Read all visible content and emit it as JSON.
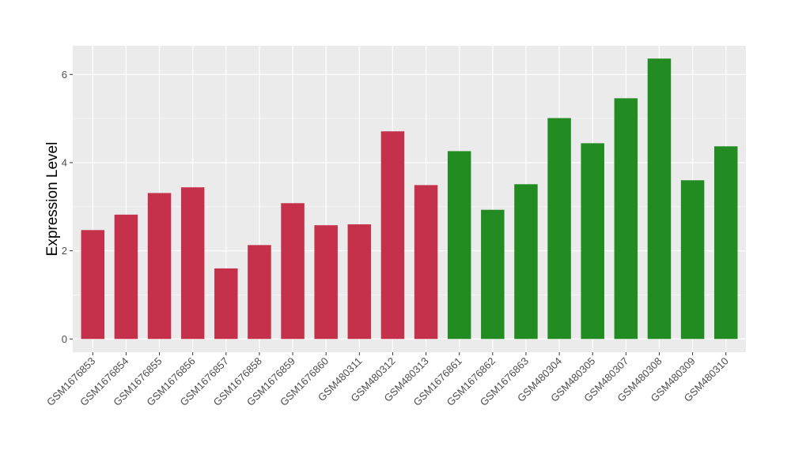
{
  "chart_data": {
    "type": "bar",
    "title": "",
    "xlabel": "",
    "ylabel": "Expression Level",
    "ylim": [
      -0.3,
      6.65
    ],
    "yticks": [
      0,
      2,
      4,
      6
    ],
    "grid": true,
    "background": "#ebebeb",
    "categories": [
      "GSM1676853",
      "GSM1676854",
      "GSM1676855",
      "GSM1676856",
      "GSM1676857",
      "GSM1676858",
      "GSM1676859",
      "GSM1676860",
      "GSM480311",
      "GSM480312",
      "GSM480313",
      "GSM1676861",
      "GSM1676862",
      "GSM1676863",
      "GSM480304",
      "GSM480305",
      "GSM480307",
      "GSM480308",
      "GSM480309",
      "GSM480310"
    ],
    "values": [
      2.47,
      2.82,
      3.31,
      3.44,
      1.6,
      2.13,
      3.08,
      2.58,
      2.6,
      4.71,
      3.49,
      4.26,
      2.93,
      3.51,
      5.01,
      4.44,
      5.46,
      6.36,
      3.6,
      4.37
    ],
    "colors": [
      "#c5314a",
      "#c5314a",
      "#c5314a",
      "#c5314a",
      "#c5314a",
      "#c5314a",
      "#c5314a",
      "#c5314a",
      "#c5314a",
      "#c5314a",
      "#c5314a",
      "#228b22",
      "#228b22",
      "#228b22",
      "#228b22",
      "#228b22",
      "#228b22",
      "#228b22",
      "#228b22",
      "#228b22"
    ]
  }
}
